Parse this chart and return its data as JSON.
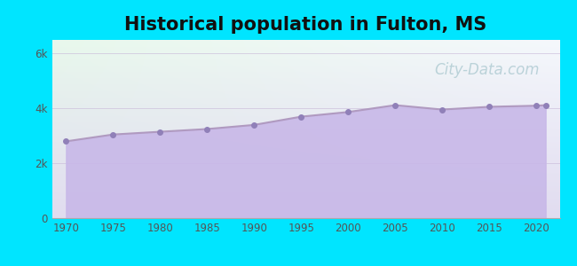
{
  "title": "Historical population in Fulton, MS",
  "title_fontsize": 15,
  "title_fontweight": "bold",
  "background_color": "#00e5ff",
  "years": [
    1970,
    1975,
    1980,
    1985,
    1990,
    1995,
    2000,
    2005,
    2010,
    2015,
    2020,
    2021
  ],
  "population": [
    2800,
    3050,
    3150,
    3250,
    3400,
    3700,
    3870,
    4120,
    3960,
    4060,
    4100,
    4120
  ],
  "line_color": "#b09ac0",
  "fill_color": "#c8b8e8",
  "fill_alpha": 0.9,
  "marker_color": "#9080b8",
  "marker_size": 4,
  "yticks": [
    0,
    2000,
    4000,
    6000
  ],
  "ytick_labels": [
    "0",
    "2k",
    "4k",
    "6k"
  ],
  "xticks": [
    1970,
    1975,
    1980,
    1985,
    1990,
    1995,
    2000,
    2005,
    2010,
    2015,
    2020
  ],
  "xlim": [
    1968.5,
    2022.5
  ],
  "ylim": [
    0,
    6500
  ],
  "grid_color": "#c8b8d8",
  "grid_alpha": 0.6,
  "watermark_text": "City-Data.com",
  "watermark_color": "#90b8c0",
  "watermark_alpha": 0.55,
  "watermark_fontsize": 12
}
